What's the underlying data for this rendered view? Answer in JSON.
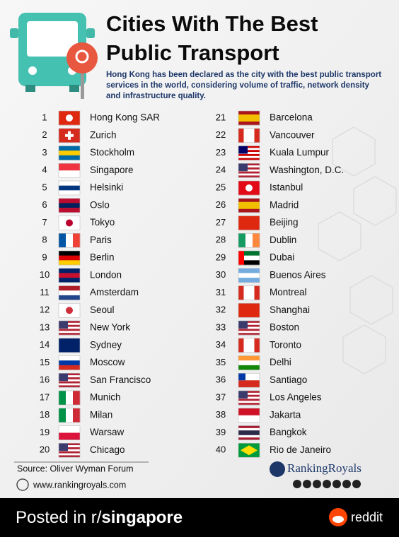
{
  "header": {
    "title_line1": "Cities With The Best",
    "title_line2": "Public Transport",
    "subtitle_lines": [
      "Hong Kong has been declared as the city with the best public transport",
      "services in the world, considering volume of traffic, network density",
      "and infrastructure quality."
    ]
  },
  "rankings": [
    {
      "rank": 1,
      "city": "Hong Kong SAR"
    },
    {
      "rank": 2,
      "city": "Zurich"
    },
    {
      "rank": 3,
      "city": "Stockholm"
    },
    {
      "rank": 4,
      "city": "Singapore"
    },
    {
      "rank": 5,
      "city": "Helsinki"
    },
    {
      "rank": 6,
      "city": "Oslo"
    },
    {
      "rank": 7,
      "city": "Tokyo"
    },
    {
      "rank": 8,
      "city": "Paris"
    },
    {
      "rank": 9,
      "city": "Berlin"
    },
    {
      "rank": 10,
      "city": "London"
    },
    {
      "rank": 11,
      "city": "Amsterdam"
    },
    {
      "rank": 12,
      "city": "Seoul"
    },
    {
      "rank": 13,
      "city": "New York"
    },
    {
      "rank": 14,
      "city": "Sydney"
    },
    {
      "rank": 15,
      "city": "Moscow"
    },
    {
      "rank": 16,
      "city": "San Francisco"
    },
    {
      "rank": 17,
      "city": "Munich"
    },
    {
      "rank": 18,
      "city": "Milan"
    },
    {
      "rank": 19,
      "city": "Warsaw"
    },
    {
      "rank": 20,
      "city": "Chicago"
    },
    {
      "rank": 21,
      "city": "Barcelona"
    },
    {
      "rank": 22,
      "city": "Vancouver"
    },
    {
      "rank": 23,
      "city": "Kuala Lumpur"
    },
    {
      "rank": 24,
      "city": "Washington, D.C."
    },
    {
      "rank": 25,
      "city": "Istanbul"
    },
    {
      "rank": 26,
      "city": "Madrid"
    },
    {
      "rank": 27,
      "city": "Beijing"
    },
    {
      "rank": 28,
      "city": "Dublin"
    },
    {
      "rank": 29,
      "city": "Dubai"
    },
    {
      "rank": 30,
      "city": "Buenos Aires"
    },
    {
      "rank": 31,
      "city": "Montreal"
    },
    {
      "rank": 32,
      "city": "Shanghai"
    },
    {
      "rank": 33,
      "city": "Boston"
    },
    {
      "rank": 34,
      "city": "Toronto"
    },
    {
      "rank": 35,
      "city": "Delhi"
    },
    {
      "rank": 36,
      "city": "Santiago"
    },
    {
      "rank": 37,
      "city": "Los Angeles"
    },
    {
      "rank": 38,
      "city": "Jakarta"
    },
    {
      "rank": 39,
      "city": "Bangkok"
    },
    {
      "rank": 40,
      "city": "Rio de Janeiro"
    }
  ],
  "source": "Source: Oliver Wyman Forum",
  "website": "www.rankingroyals.com",
  "brand": "RankingRoyals",
  "footer": {
    "prefix": "Posted in r/",
    "subreddit": "singapore",
    "platform": "reddit"
  }
}
